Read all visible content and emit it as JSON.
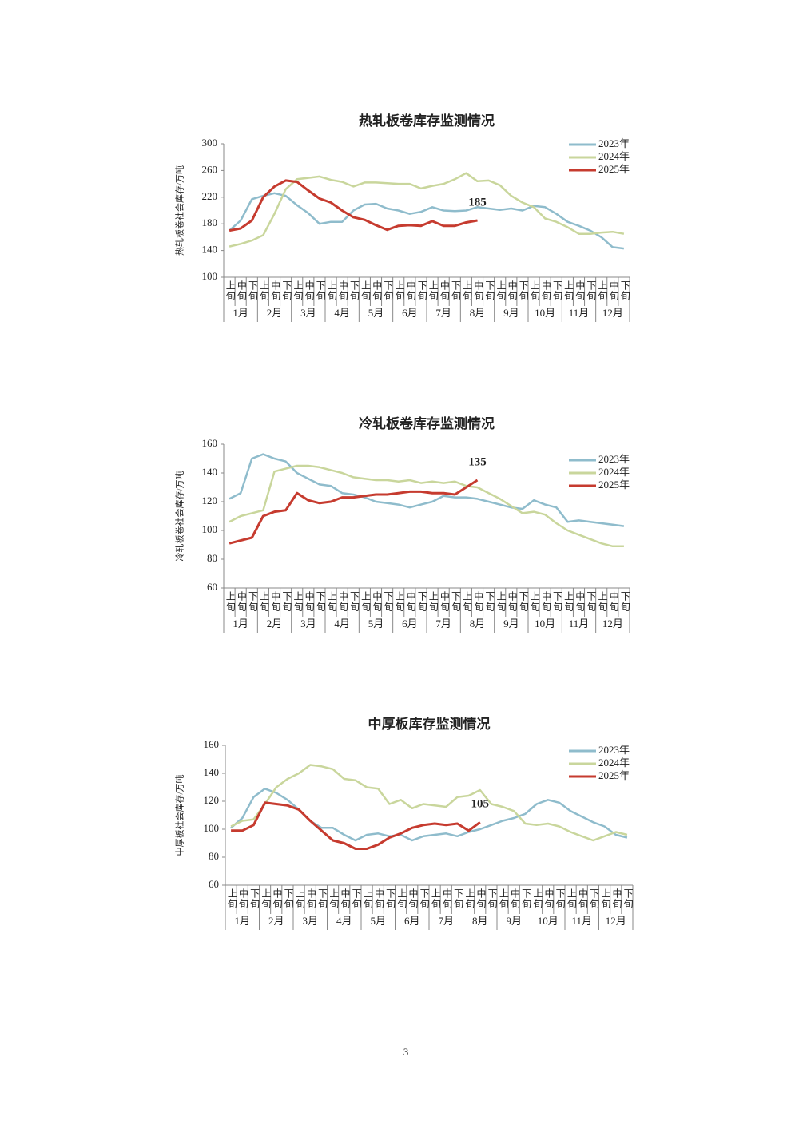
{
  "chart_data": [
    {
      "type": "line",
      "title": "热轧板卷库存监测情况",
      "y_label": "热轧板卷社会库存/万吨",
      "categories": [
        "上旬",
        "中旬",
        "下旬",
        "上旬",
        "中旬",
        "下旬",
        "上旬",
        "中旬",
        "下旬",
        "上旬",
        "中旬",
        "下旬",
        "上旬",
        "中旬",
        "下旬",
        "上旬",
        "中旬",
        "下旬",
        "上旬",
        "中旬",
        "下旬",
        "上旬",
        "中旬",
        "下旬",
        "上旬",
        "中旬",
        "下旬",
        "上旬",
        "中旬",
        "下旬",
        "上旬",
        "中旬",
        "下旬",
        "上旬",
        "中旬",
        "下旬"
      ],
      "months": [
        "1月",
        "2月",
        "3月",
        "4月",
        "5月",
        "6月",
        "7月",
        "8月",
        "9月",
        "10月",
        "11月",
        "12月"
      ],
      "ylim": [
        100,
        300
      ],
      "yticks": [
        100,
        140,
        180,
        220,
        260,
        300
      ],
      "annotation": "185",
      "series": [
        {
          "name": "2023年",
          "color": "#8fbccc",
          "values": [
            170,
            185,
            217,
            222,
            226,
            222,
            208,
            196,
            180,
            183,
            183,
            200,
            209,
            210,
            203,
            200,
            195,
            198,
            205,
            200,
            199,
            200,
            205,
            203,
            201,
            203,
            200,
            207,
            205,
            195,
            183,
            177,
            170,
            160,
            145,
            143
          ]
        },
        {
          "name": "2024年",
          "color": "#c9d69c",
          "values": [
            146,
            150,
            155,
            163,
            195,
            232,
            247,
            249,
            251,
            246,
            243,
            236,
            242,
            242,
            241,
            240,
            240,
            233,
            237,
            240,
            247,
            256,
            244,
            245,
            238,
            222,
            212,
            205,
            188,
            183,
            175,
            165,
            165,
            167,
            168,
            165
          ]
        },
        {
          "name": "2025年",
          "color": "#c63b2f",
          "values": [
            170,
            173,
            185,
            220,
            236,
            245,
            243,
            230,
            218,
            212,
            200,
            190,
            186,
            178,
            171,
            177,
            178,
            177,
            184,
            177,
            177,
            182,
            185,
            null,
            null,
            null,
            null,
            null,
            null,
            null,
            null,
            null,
            null,
            null,
            null,
            null
          ]
        }
      ]
    },
    {
      "type": "line",
      "title": "冷轧板卷库存监测情况",
      "y_label": "冷轧板卷社会库存/万吨",
      "categories": [
        "上旬",
        "中旬",
        "下旬",
        "上旬",
        "中旬",
        "下旬",
        "上旬",
        "中旬",
        "下旬",
        "上旬",
        "中旬",
        "下旬",
        "上旬",
        "中旬",
        "下旬",
        "上旬",
        "中旬",
        "下旬",
        "上旬",
        "中旬",
        "下旬",
        "上旬",
        "中旬",
        "下旬",
        "上旬",
        "中旬",
        "下旬",
        "上旬",
        "中旬",
        "下旬",
        "上旬",
        "中旬",
        "下旬",
        "上旬",
        "中旬",
        "下旬"
      ],
      "months": [
        "1月",
        "2月",
        "3月",
        "4月",
        "5月",
        "6月",
        "7月",
        "8月",
        "9月",
        "10月",
        "11月",
        "12月"
      ],
      "ylim": [
        60,
        160
      ],
      "yticks": [
        60,
        80,
        100,
        120,
        140,
        160
      ],
      "annotation": "135",
      "series": [
        {
          "name": "2023年",
          "color": "#8fbccc",
          "values": [
            122,
            126,
            150,
            153,
            150,
            148,
            140,
            136,
            132,
            131,
            126,
            125,
            123,
            120,
            119,
            118,
            116,
            118,
            120,
            124,
            123,
            123,
            122,
            120,
            118,
            116,
            115,
            121,
            118,
            116,
            106,
            107,
            106,
            105,
            104,
            103
          ]
        },
        {
          "name": "2024年",
          "color": "#c9d69c",
          "values": [
            106,
            110,
            112,
            114,
            141,
            143,
            145,
            145,
            144,
            142,
            140,
            137,
            136,
            135,
            135,
            134,
            135,
            133,
            134,
            133,
            134,
            131,
            130,
            126,
            122,
            117,
            112,
            113,
            111,
            105,
            100,
            97,
            94,
            91,
            89,
            89
          ]
        },
        {
          "name": "2025年",
          "color": "#c63b2f",
          "values": [
            91,
            93,
            95,
            110,
            113,
            114,
            126,
            121,
            119,
            120,
            123,
            123,
            124,
            125,
            125,
            126,
            127,
            127,
            126,
            126,
            125,
            130,
            135,
            null,
            null,
            null,
            null,
            null,
            null,
            null,
            null,
            null,
            null,
            null,
            null,
            null
          ]
        }
      ]
    },
    {
      "type": "line",
      "title": "中厚板库存监测情况",
      "y_label": "中厚板社会库存/万吨",
      "categories": [
        "上旬",
        "中旬",
        "下旬",
        "上旬",
        "中旬",
        "下旬",
        "上旬",
        "中旬",
        "下旬",
        "上旬",
        "中旬",
        "下旬",
        "上旬",
        "中旬",
        "下旬",
        "上旬",
        "中旬",
        "下旬",
        "上旬",
        "中旬",
        "下旬",
        "上旬",
        "中旬",
        "下旬",
        "上旬",
        "中旬",
        "下旬",
        "上旬",
        "中旬",
        "下旬",
        "上旬",
        "中旬",
        "下旬",
        "上旬",
        "中旬",
        "下旬"
      ],
      "months": [
        "1月",
        "2月",
        "3月",
        "4月",
        "5月",
        "6月",
        "7月",
        "8月",
        "9月",
        "10月",
        "11月",
        "12月"
      ],
      "ylim": [
        60,
        160
      ],
      "yticks": [
        60,
        80,
        100,
        120,
        140,
        160
      ],
      "annotation": "105",
      "series": [
        {
          "name": "2023年",
          "color": "#8fbccc",
          "values": [
            101,
            108,
            123,
            129,
            126,
            121,
            114,
            106,
            101,
            101,
            96,
            92,
            96,
            97,
            95,
            96,
            92,
            95,
            96,
            97,
            95,
            98,
            100,
            103,
            106,
            108,
            111,
            118,
            121,
            119,
            113,
            109,
            105,
            102,
            96,
            94
          ]
        },
        {
          "name": "2024年",
          "color": "#c9d69c",
          "values": [
            102,
            106,
            107,
            118,
            130,
            136,
            140,
            146,
            145,
            143,
            136,
            135,
            130,
            129,
            118,
            121,
            115,
            118,
            117,
            116,
            123,
            124,
            128,
            118,
            116,
            113,
            104,
            103,
            104,
            102,
            98,
            95,
            92,
            95,
            98,
            96
          ]
        },
        {
          "name": "2025年",
          "color": "#c63b2f",
          "values": [
            99,
            99,
            103,
            119,
            118,
            117,
            114,
            106,
            99,
            92,
            90,
            86,
            86,
            89,
            94,
            97,
            101,
            103,
            104,
            103,
            104,
            99,
            105,
            null,
            null,
            null,
            null,
            null,
            null,
            null,
            null,
            null,
            null,
            null,
            null,
            null
          ]
        }
      ]
    }
  ],
  "page_number": "3"
}
